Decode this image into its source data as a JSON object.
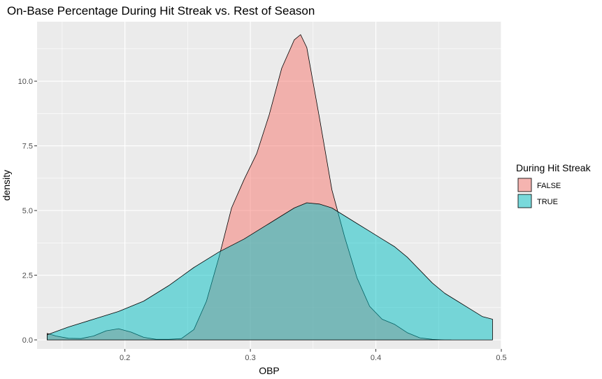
{
  "chart_data": {
    "type": "area",
    "title": "On-Base Percentage During Hit Streak vs. Rest of Season",
    "xlabel": "OBP",
    "ylabel": "density",
    "xlim": [
      0.13,
      0.5
    ],
    "ylim": [
      -0.35,
      12.3
    ],
    "x_ticks": [
      {
        "value": 0.2,
        "label": "0.2"
      },
      {
        "value": 0.3,
        "label": "0.3"
      },
      {
        "value": 0.4,
        "label": "0.4"
      },
      {
        "value": 0.5,
        "label": "0.5"
      }
    ],
    "y_ticks": [
      {
        "value": 0.0,
        "label": "0.0"
      },
      {
        "value": 2.5,
        "label": "2.5"
      },
      {
        "value": 5.0,
        "label": "5.0"
      },
      {
        "value": 7.5,
        "label": "7.5"
      },
      {
        "value": 10.0,
        "label": "10.0"
      }
    ],
    "grid": true,
    "legend": {
      "title": "During Hit Streak",
      "position": "right"
    },
    "series": [
      {
        "name": "FALSE",
        "color": "#F8766D",
        "x": [
          0.138,
          0.145,
          0.155,
          0.165,
          0.175,
          0.185,
          0.195,
          0.205,
          0.215,
          0.225,
          0.235,
          0.245,
          0.255,
          0.265,
          0.275,
          0.285,
          0.295,
          0.305,
          0.315,
          0.325,
          0.335,
          0.34,
          0.345,
          0.355,
          0.365,
          0.375,
          0.385,
          0.395,
          0.405,
          0.415,
          0.425,
          0.435,
          0.445,
          0.455,
          0.46
        ],
        "y": [
          0.25,
          0.15,
          0.06,
          0.05,
          0.15,
          0.35,
          0.43,
          0.3,
          0.1,
          0.02,
          0.02,
          0.05,
          0.4,
          1.5,
          3.2,
          5.1,
          6.2,
          7.2,
          8.7,
          10.5,
          11.6,
          11.8,
          11.3,
          8.6,
          5.8,
          4.0,
          2.4,
          1.3,
          0.8,
          0.6,
          0.28,
          0.08,
          0.02,
          0.0,
          0.0
        ]
      },
      {
        "name": "TRUE",
        "color": "#00BFC4",
        "x": [
          0.138,
          0.155,
          0.175,
          0.195,
          0.215,
          0.235,
          0.255,
          0.275,
          0.295,
          0.315,
          0.325,
          0.335,
          0.345,
          0.355,
          0.365,
          0.375,
          0.385,
          0.395,
          0.405,
          0.415,
          0.425,
          0.435,
          0.445,
          0.455,
          0.465,
          0.475,
          0.485,
          0.493
        ],
        "y": [
          0.2,
          0.5,
          0.8,
          1.1,
          1.5,
          2.1,
          2.8,
          3.4,
          3.9,
          4.5,
          4.8,
          5.1,
          5.3,
          5.25,
          5.1,
          4.8,
          4.5,
          4.2,
          3.9,
          3.6,
          3.2,
          2.7,
          2.2,
          1.8,
          1.5,
          1.2,
          0.9,
          0.8
        ]
      }
    ]
  }
}
